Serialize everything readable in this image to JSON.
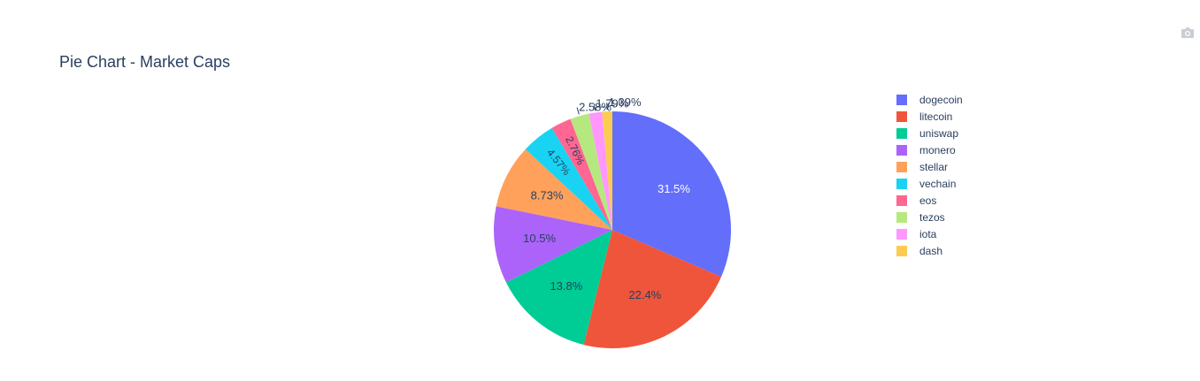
{
  "colors": [
    "#636efa",
    "#EF553B",
    "#00cc96",
    "#ab63fa",
    "#FFA15A",
    "#19d3f3",
    "#FF6692",
    "#B6E880",
    "#FF97FF",
    "#FECB52"
  ],
  "toolbar": {
    "icon": "camera-icon"
  },
  "chart_data": {
    "type": "pie",
    "title": "Pie Chart - Market Caps",
    "labels": [
      "dogecoin",
      "litecoin",
      "uniswap",
      "monero",
      "stellar",
      "vechain",
      "eos",
      "tezos",
      "iota",
      "dash"
    ],
    "values": [
      31.5,
      22.4,
      13.8,
      10.5,
      8.73,
      4.57,
      2.76,
      2.58,
      1.79,
      1.39
    ],
    "text": [
      "31.5%",
      "22.4%",
      "13.8%",
      "10.5%",
      "8.73%",
      "4.57%",
      "2.76%",
      "2.58%",
      "1.79%",
      "1.39%"
    ],
    "legend_position": "right",
    "direction": "clockwise",
    "start": "top"
  }
}
